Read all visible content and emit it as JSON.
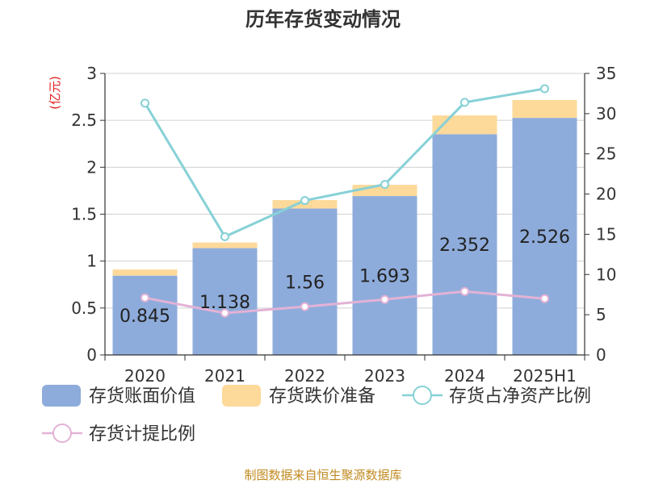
{
  "chart_data": {
    "type": "bar",
    "title": "历年存货变动情况",
    "left_unit": "(亿元)",
    "categories": [
      "2020",
      "2021",
      "2022",
      "2023",
      "2024",
      "2025H1"
    ],
    "ylim_left": [
      0,
      3
    ],
    "yticks_left": [
      "0",
      "0.5",
      "1",
      "1.5",
      "2",
      "2.5",
      "3"
    ],
    "ylim_right": [
      0,
      35
    ],
    "yticks_right": [
      "0",
      "5",
      "10",
      "15",
      "20",
      "25",
      "30",
      "35"
    ],
    "grid": true,
    "legend_position": "bottom",
    "series": [
      {
        "name": "存货账面价值",
        "type": "bar",
        "axis": "left",
        "color": "#8eacdb",
        "values": [
          0.845,
          1.138,
          1.56,
          1.693,
          2.352,
          2.526
        ],
        "labels": [
          "0.845",
          "1.138",
          "1.56",
          "1.693",
          "2.352",
          "2.526"
        ]
      },
      {
        "name": "存货跌价准备",
        "type": "bar",
        "axis": "left",
        "color": "#fdd99a",
        "values": [
          0.065,
          0.06,
          0.09,
          0.12,
          0.2,
          0.19
        ]
      },
      {
        "name": "存货占净资产比例",
        "type": "line",
        "axis": "right",
        "color": "#86d1d6",
        "values": [
          31.3,
          14.7,
          19.2,
          21.2,
          31.4,
          33.1
        ]
      },
      {
        "name": "存货计提比例",
        "type": "line",
        "axis": "right",
        "color": "#e3b2d6",
        "values": [
          7.1,
          5.2,
          6.0,
          6.9,
          7.9,
          7.0
        ]
      }
    ]
  },
  "source_note": "制图数据来自恒生聚源数据库"
}
